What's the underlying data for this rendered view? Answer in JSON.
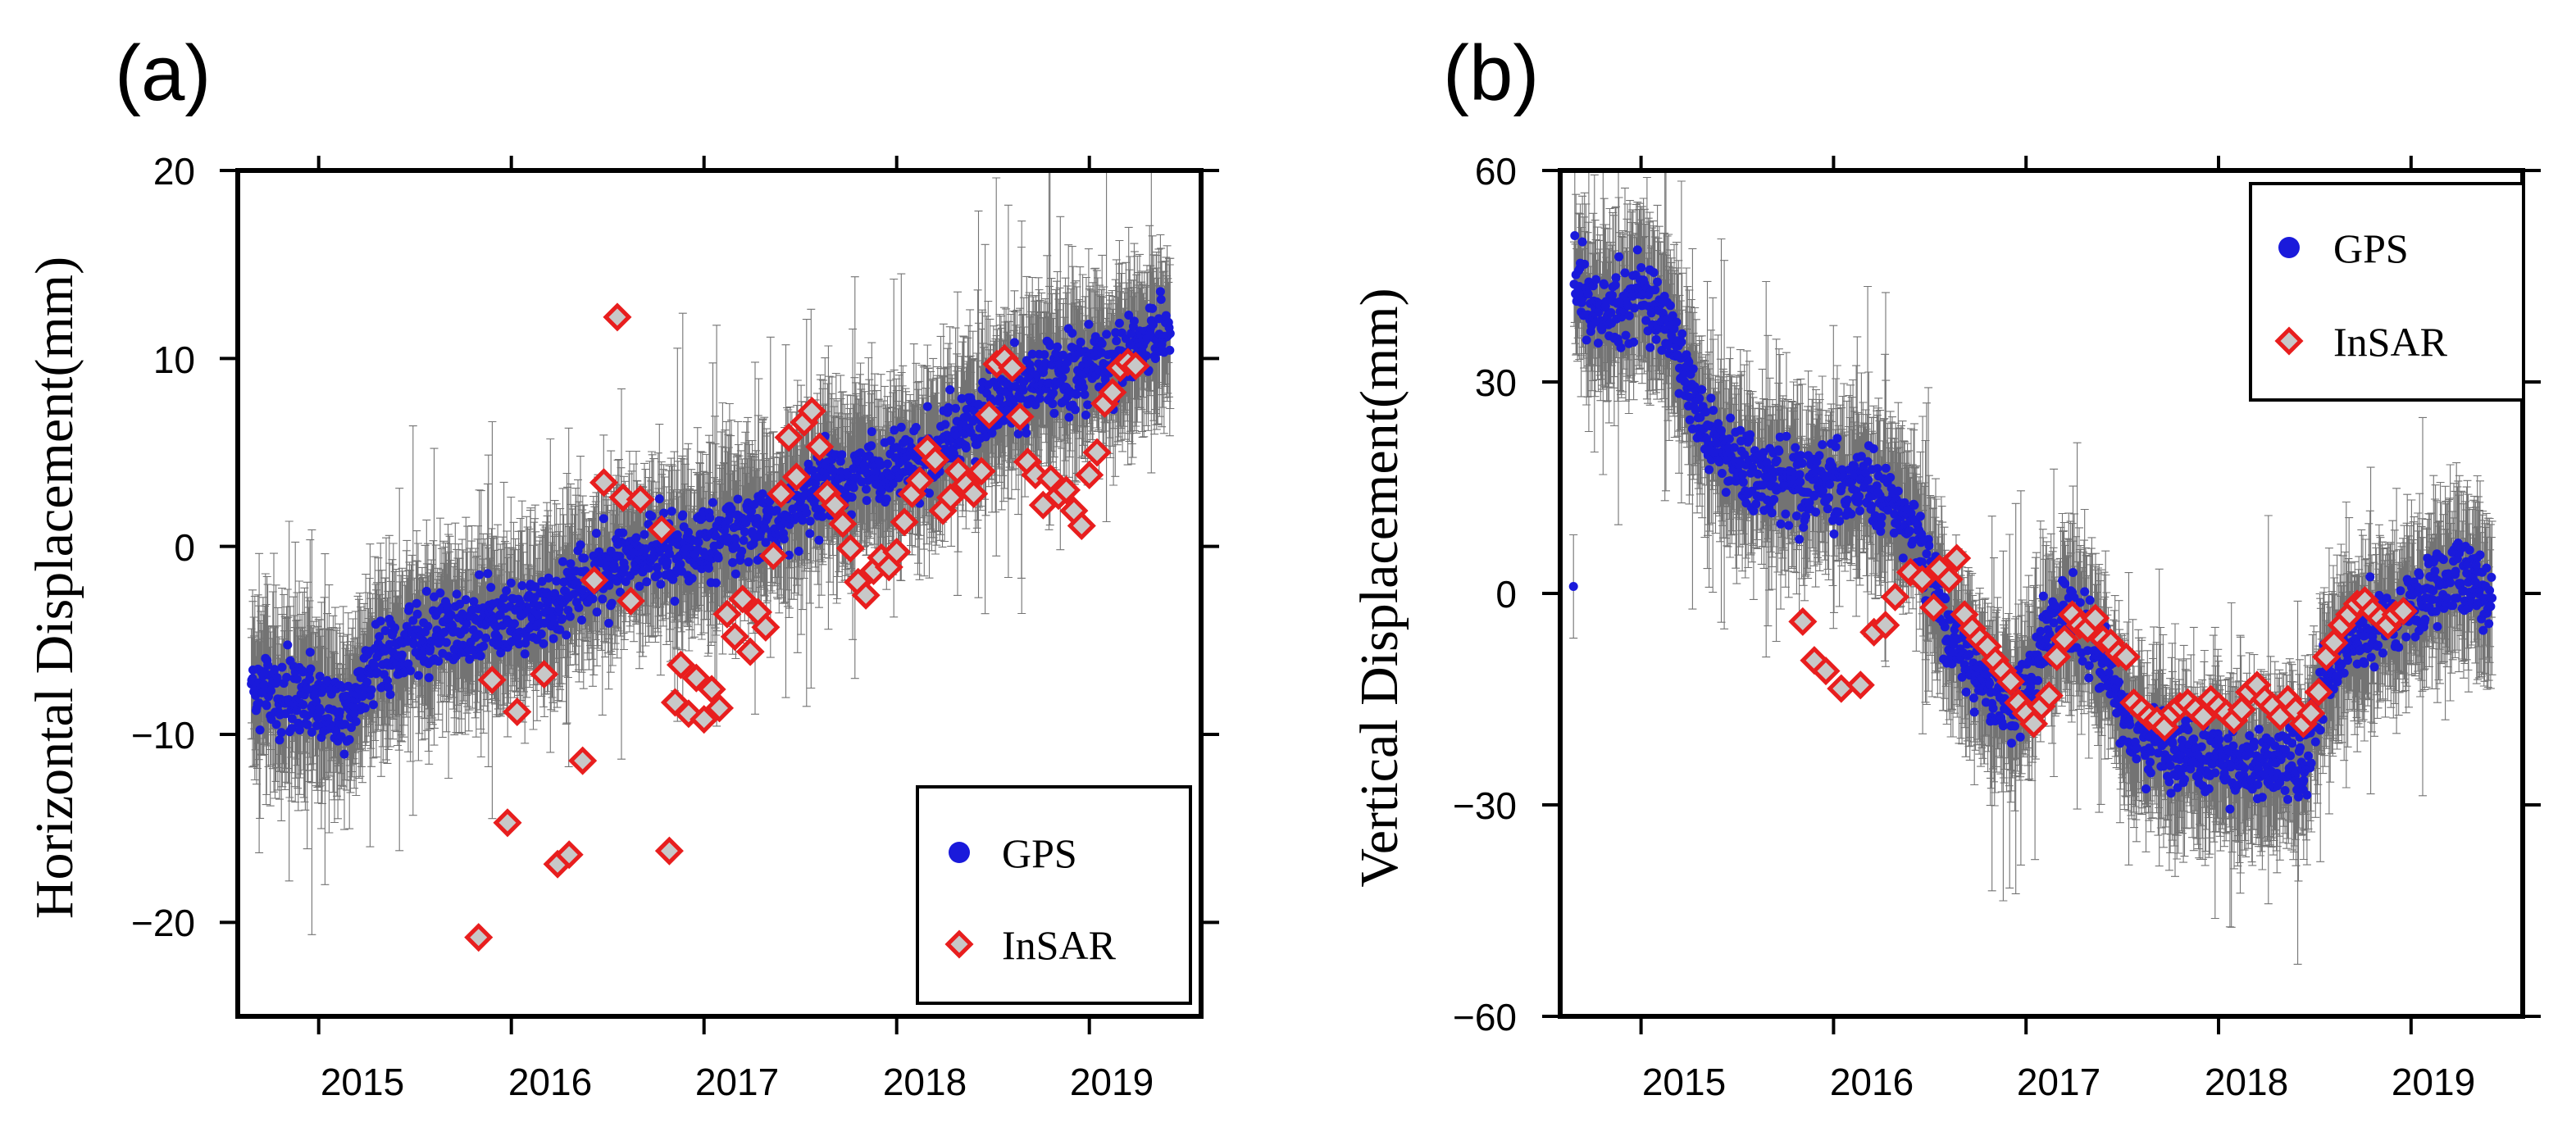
{
  "chart_data": [
    {
      "panel_label": "(a)",
      "type": "scatter",
      "ylabel": "Horizontal Displacement(mm)",
      "xlabel": "",
      "x_unit": "decimal year",
      "xlim": [
        2014.58,
        2019.58
      ],
      "ylim": [
        -25,
        20
      ],
      "y_ticks": [
        20,
        10,
        0,
        -10,
        -20
      ],
      "y_tick_labels": [
        "20",
        "10",
        "0",
        "−10",
        "−20"
      ],
      "x_ticks": [
        2015,
        2016,
        2017,
        2018,
        2019
      ],
      "x_tick_labels": [
        "2015",
        "2016",
        "2017",
        "2018",
        "2019"
      ],
      "legend": {
        "position": "bottom-right",
        "entries": [
          "GPS",
          "InSAR"
        ]
      },
      "series": [
        {
          "name": "GPS",
          "marker": "circle",
          "color": "#1a1adb",
          "errorbar_color": "#000000",
          "errorbar_typical_mm": 3.5,
          "trend": [
            {
              "x": 2014.65,
              "y": -7.5
            },
            {
              "x": 2014.9,
              "y": -8
            },
            {
              "x": 2015.15,
              "y": -8.5
            },
            {
              "x": 2015.3,
              "y": -6
            },
            {
              "x": 2015.6,
              "y": -4.5
            },
            {
              "x": 2015.9,
              "y": -4
            },
            {
              "x": 2016.2,
              "y": -3.5
            },
            {
              "x": 2016.5,
              "y": -1
            },
            {
              "x": 2016.9,
              "y": 0
            },
            {
              "x": 2017.2,
              "y": 1
            },
            {
              "x": 2017.5,
              "y": 2.5
            },
            {
              "x": 2017.8,
              "y": 4
            },
            {
              "x": 2018.1,
              "y": 4.5
            },
            {
              "x": 2018.4,
              "y": 6.5
            },
            {
              "x": 2018.7,
              "y": 8.5
            },
            {
              "x": 2019.0,
              "y": 9.5
            },
            {
              "x": 2019.3,
              "y": 11
            },
            {
              "x": 2019.42,
              "y": 11.5
            }
          ],
          "scatter_mm": 2.0
        },
        {
          "name": "InSAR",
          "marker": "diamond",
          "color": "#e81e1e",
          "fill": "#c8c8c8",
          "points": [
            {
              "x": 2015.83,
              "y": -20.8
            },
            {
              "x": 2015.9,
              "y": -7.1
            },
            {
              "x": 2015.98,
              "y": -14.7
            },
            {
              "x": 2016.03,
              "y": -8.8
            },
            {
              "x": 2016.17,
              "y": -6.8
            },
            {
              "x": 2016.24,
              "y": -16.9
            },
            {
              "x": 2016.3,
              "y": -16.4
            },
            {
              "x": 2016.37,
              "y": -11.4
            },
            {
              "x": 2016.43,
              "y": -1.8
            },
            {
              "x": 2016.48,
              "y": 3.4
            },
            {
              "x": 2016.55,
              "y": 12.2
            },
            {
              "x": 2016.58,
              "y": 2.6
            },
            {
              "x": 2016.62,
              "y": -2.9
            },
            {
              "x": 2016.67,
              "y": 2.5
            },
            {
              "x": 2016.78,
              "y": 0.9
            },
            {
              "x": 2016.82,
              "y": -16.2
            },
            {
              "x": 2016.85,
              "y": -8.3
            },
            {
              "x": 2016.88,
              "y": -6.3
            },
            {
              "x": 2016.92,
              "y": -8.9
            },
            {
              "x": 2016.96,
              "y": -7.0
            },
            {
              "x": 2017.0,
              "y": -9.2
            },
            {
              "x": 2017.04,
              "y": -7.6
            },
            {
              "x": 2017.08,
              "y": -8.6
            },
            {
              "x": 2017.12,
              "y": -3.6
            },
            {
              "x": 2017.16,
              "y": -4.8
            },
            {
              "x": 2017.2,
              "y": -2.8
            },
            {
              "x": 2017.24,
              "y": -5.6
            },
            {
              "x": 2017.28,
              "y": -3.5
            },
            {
              "x": 2017.32,
              "y": -4.3
            },
            {
              "x": 2017.36,
              "y": -0.5
            },
            {
              "x": 2017.4,
              "y": 2.8
            },
            {
              "x": 2017.44,
              "y": 5.8
            },
            {
              "x": 2017.48,
              "y": 3.7
            },
            {
              "x": 2017.52,
              "y": 6.6
            },
            {
              "x": 2017.56,
              "y": 7.2
            },
            {
              "x": 2017.6,
              "y": 5.3
            },
            {
              "x": 2017.64,
              "y": 2.8
            },
            {
              "x": 2017.68,
              "y": 2.2
            },
            {
              "x": 2017.72,
              "y": 1.2
            },
            {
              "x": 2017.76,
              "y": -0.1
            },
            {
              "x": 2017.8,
              "y": -1.9
            },
            {
              "x": 2017.84,
              "y": -2.6
            },
            {
              "x": 2017.88,
              "y": -1.3
            },
            {
              "x": 2017.92,
              "y": -0.6
            },
            {
              "x": 2017.96,
              "y": -1.1
            },
            {
              "x": 2018.0,
              "y": -0.3
            },
            {
              "x": 2018.04,
              "y": 1.3
            },
            {
              "x": 2018.08,
              "y": 2.8
            },
            {
              "x": 2018.12,
              "y": 3.5
            },
            {
              "x": 2018.16,
              "y": 5.2
            },
            {
              "x": 2018.2,
              "y": 4.6
            },
            {
              "x": 2018.24,
              "y": 1.9
            },
            {
              "x": 2018.28,
              "y": 2.6
            },
            {
              "x": 2018.32,
              "y": 4.0
            },
            {
              "x": 2018.36,
              "y": 3.3
            },
            {
              "x": 2018.4,
              "y": 2.8
            },
            {
              "x": 2018.44,
              "y": 4.0
            },
            {
              "x": 2018.48,
              "y": 7.0
            },
            {
              "x": 2018.52,
              "y": 9.7
            },
            {
              "x": 2018.56,
              "y": 10.0
            },
            {
              "x": 2018.6,
              "y": 9.5
            },
            {
              "x": 2018.64,
              "y": 6.9
            },
            {
              "x": 2018.68,
              "y": 4.5
            },
            {
              "x": 2018.72,
              "y": 3.8
            },
            {
              "x": 2018.76,
              "y": 2.2
            },
            {
              "x": 2018.8,
              "y": 3.6
            },
            {
              "x": 2018.84,
              "y": 2.7
            },
            {
              "x": 2018.88,
              "y": 3.0
            },
            {
              "x": 2018.92,
              "y": 1.9
            },
            {
              "x": 2018.96,
              "y": 1.1
            },
            {
              "x": 2019.0,
              "y": 3.8
            },
            {
              "x": 2019.04,
              "y": 5.0
            },
            {
              "x": 2019.08,
              "y": 7.6
            },
            {
              "x": 2019.12,
              "y": 8.2
            },
            {
              "x": 2019.16,
              "y": 9.5
            },
            {
              "x": 2019.2,
              "y": 9.8
            },
            {
              "x": 2019.24,
              "y": 9.6
            }
          ]
        }
      ]
    },
    {
      "panel_label": "(b)",
      "type": "scatter",
      "ylabel": "Vertical Displacement(mm)",
      "xlabel": "",
      "x_unit": "decimal year",
      "xlim": [
        2014.58,
        2019.58
      ],
      "ylim": [
        -60,
        60
      ],
      "y_ticks": [
        60,
        30,
        0,
        -30,
        -60
      ],
      "y_tick_labels": [
        "60",
        "30",
        "0",
        "−30",
        "−60"
      ],
      "x_ticks": [
        2015,
        2016,
        2017,
        2018,
        2019
      ],
      "x_tick_labels": [
        "2015",
        "2016",
        "2017",
        "2018",
        "2019"
      ],
      "legend": {
        "position": "top-right",
        "entries": [
          "GPS",
          "InSAR"
        ]
      },
      "series": [
        {
          "name": "GPS",
          "marker": "circle",
          "color": "#1a1adb",
          "errorbar_color": "#000000",
          "errorbar_typical_mm": 9,
          "trend": [
            {
              "x": 2014.65,
              "y": 45
            },
            {
              "x": 2014.8,
              "y": 40
            },
            {
              "x": 2015.0,
              "y": 42
            },
            {
              "x": 2015.15,
              "y": 38
            },
            {
              "x": 2015.3,
              "y": 25
            },
            {
              "x": 2015.5,
              "y": 18
            },
            {
              "x": 2015.8,
              "y": 15
            },
            {
              "x": 2016.0,
              "y": 16
            },
            {
              "x": 2016.2,
              "y": 15
            },
            {
              "x": 2016.4,
              "y": 10
            },
            {
              "x": 2016.6,
              "y": -5
            },
            {
              "x": 2016.8,
              "y": -14
            },
            {
              "x": 2017.0,
              "y": -16
            },
            {
              "x": 2017.1,
              "y": -5
            },
            {
              "x": 2017.25,
              "y": -3
            },
            {
              "x": 2017.4,
              "y": -10
            },
            {
              "x": 2017.55,
              "y": -20
            },
            {
              "x": 2017.8,
              "y": -22
            },
            {
              "x": 2018.0,
              "y": -24
            },
            {
              "x": 2018.2,
              "y": -25
            },
            {
              "x": 2018.45,
              "y": -23
            },
            {
              "x": 2018.55,
              "y": -12
            },
            {
              "x": 2018.7,
              "y": -6
            },
            {
              "x": 2018.9,
              "y": -4
            },
            {
              "x": 2019.05,
              "y": -1
            },
            {
              "x": 2019.2,
              "y": 3
            },
            {
              "x": 2019.42,
              "y": 0
            }
          ],
          "scatter_mm": 5.5
        },
        {
          "name": "InSAR",
          "marker": "diamond",
          "color": "#e81e1e",
          "fill": "#c8c8c8",
          "points": [
            {
              "x": 2015.84,
              "y": -4.0
            },
            {
              "x": 2015.9,
              "y": -9.5
            },
            {
              "x": 2015.96,
              "y": -11.0
            },
            {
              "x": 2016.04,
              "y": -13.5
            },
            {
              "x": 2016.14,
              "y": -13.0
            },
            {
              "x": 2016.21,
              "y": -5.5
            },
            {
              "x": 2016.27,
              "y": -4.5
            },
            {
              "x": 2016.32,
              "y": -0.5
            },
            {
              "x": 2016.4,
              "y": 3.0
            },
            {
              "x": 2016.46,
              "y": 2.0
            },
            {
              "x": 2016.52,
              "y": -2.0
            },
            {
              "x": 2016.55,
              "y": 3.5
            },
            {
              "x": 2016.6,
              "y": 2.0
            },
            {
              "x": 2016.64,
              "y": 5.0
            },
            {
              "x": 2016.68,
              "y": -3.0
            },
            {
              "x": 2016.72,
              "y": -5.0
            },
            {
              "x": 2016.76,
              "y": -6.5
            },
            {
              "x": 2016.8,
              "y": -7.5
            },
            {
              "x": 2016.84,
              "y": -9.5
            },
            {
              "x": 2016.88,
              "y": -11.0
            },
            {
              "x": 2016.92,
              "y": -12.5
            },
            {
              "x": 2016.96,
              "y": -15.5
            },
            {
              "x": 2017.0,
              "y": -17.0
            },
            {
              "x": 2017.04,
              "y": -18.5
            },
            {
              "x": 2017.08,
              "y": -16.0
            },
            {
              "x": 2017.12,
              "y": -14.5
            },
            {
              "x": 2017.16,
              "y": -9.0
            },
            {
              "x": 2017.2,
              "y": -6.5
            },
            {
              "x": 2017.24,
              "y": -3.0
            },
            {
              "x": 2017.28,
              "y": -4.5
            },
            {
              "x": 2017.32,
              "y": -5.0
            },
            {
              "x": 2017.36,
              "y": -3.5
            },
            {
              "x": 2017.4,
              "y": -6.5
            },
            {
              "x": 2017.44,
              "y": -7.0
            },
            {
              "x": 2017.48,
              "y": -8.5
            },
            {
              "x": 2017.52,
              "y": -9.0
            },
            {
              "x": 2017.56,
              "y": -15.5
            },
            {
              "x": 2017.6,
              "y": -16.5
            },
            {
              "x": 2017.64,
              "y": -17.5
            },
            {
              "x": 2017.68,
              "y": -18.0
            },
            {
              "x": 2017.72,
              "y": -19.0
            },
            {
              "x": 2017.76,
              "y": -17.0
            },
            {
              "x": 2017.8,
              "y": -16.0
            },
            {
              "x": 2017.84,
              "y": -15.5
            },
            {
              "x": 2017.88,
              "y": -16.5
            },
            {
              "x": 2017.92,
              "y": -17.5
            },
            {
              "x": 2017.96,
              "y": -15.0
            },
            {
              "x": 2018.0,
              "y": -16.0
            },
            {
              "x": 2018.04,
              "y": -17.0
            },
            {
              "x": 2018.08,
              "y": -18.0
            },
            {
              "x": 2018.12,
              "y": -16.5
            },
            {
              "x": 2018.16,
              "y": -14.0
            },
            {
              "x": 2018.2,
              "y": -13.0
            },
            {
              "x": 2018.24,
              "y": -15.0
            },
            {
              "x": 2018.28,
              "y": -16.0
            },
            {
              "x": 2018.32,
              "y": -17.5
            },
            {
              "x": 2018.36,
              "y": -15.0
            },
            {
              "x": 2018.4,
              "y": -16.5
            },
            {
              "x": 2018.44,
              "y": -18.5
            },
            {
              "x": 2018.48,
              "y": -17.0
            },
            {
              "x": 2018.52,
              "y": -14.0
            },
            {
              "x": 2018.56,
              "y": -9.0
            },
            {
              "x": 2018.6,
              "y": -7.0
            },
            {
              "x": 2018.64,
              "y": -4.5
            },
            {
              "x": 2018.68,
              "y": -3.0
            },
            {
              "x": 2018.72,
              "y": -1.5
            },
            {
              "x": 2018.76,
              "y": -1.0
            },
            {
              "x": 2018.8,
              "y": -2.5
            },
            {
              "x": 2018.84,
              "y": -3.5
            },
            {
              "x": 2018.88,
              "y": -4.5
            },
            {
              "x": 2018.92,
              "y": -3.0
            },
            {
              "x": 2018.96,
              "y": -2.5
            }
          ]
        }
      ]
    }
  ]
}
